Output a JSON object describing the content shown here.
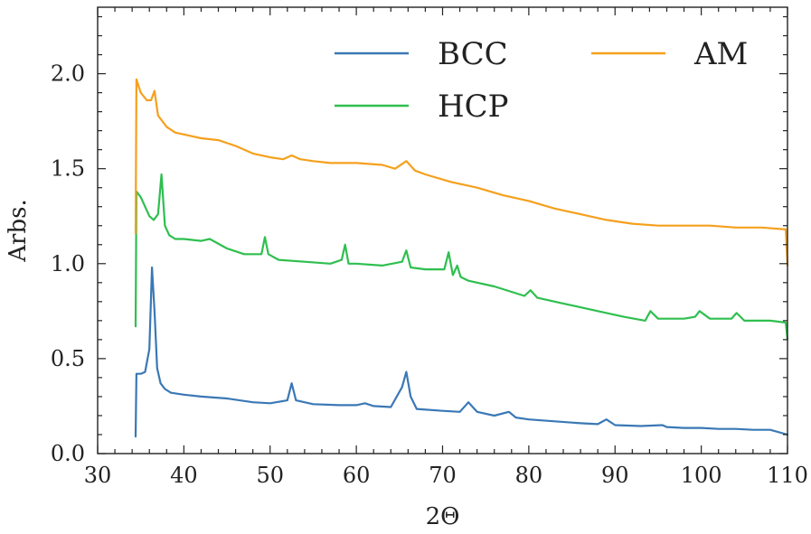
{
  "chart_data": {
    "type": "line",
    "title": "",
    "xlabel": "2Θ",
    "ylabel": "Arbs.",
    "xlim": [
      30,
      110
    ],
    "ylim": [
      0.0,
      2.35
    ],
    "xticks": [
      30,
      40,
      50,
      60,
      70,
      80,
      90,
      100,
      110
    ],
    "xtick_labels": [
      "30",
      "40",
      "50",
      "60",
      "70",
      "80",
      "90",
      "100",
      "110"
    ],
    "yticks": [
      0.0,
      0.5,
      1.0,
      1.5,
      2.0
    ],
    "ytick_labels": [
      "0.0",
      "0.5",
      "1.0",
      "1.5",
      "2.0"
    ],
    "grid": false,
    "legend_position": "top-right",
    "legend_columns": 2,
    "series": [
      {
        "name": "BCC",
        "color": "#3a78b5",
        "x": [
          34.4,
          34.5,
          35.0,
          35.5,
          36.0,
          36.3,
          36.6,
          36.9,
          37.3,
          37.8,
          38.5,
          40,
          42,
          45,
          48,
          50,
          52.0,
          52.5,
          53.0,
          55,
          58,
          60,
          61.0,
          62,
          64,
          65.3,
          65.8,
          66.3,
          67,
          70,
          72,
          73.0,
          74,
          76,
          77.7,
          78.5,
          80,
          83,
          86,
          88,
          89.0,
          90,
          93,
          95.5,
          96,
          98,
          100,
          102,
          104,
          106,
          108,
          110
        ],
        "values": [
          0.09,
          0.42,
          0.42,
          0.43,
          0.55,
          0.98,
          0.75,
          0.45,
          0.37,
          0.34,
          0.32,
          0.31,
          0.3,
          0.29,
          0.27,
          0.265,
          0.28,
          0.37,
          0.28,
          0.26,
          0.255,
          0.255,
          0.265,
          0.25,
          0.245,
          0.35,
          0.43,
          0.3,
          0.235,
          0.225,
          0.22,
          0.27,
          0.22,
          0.2,
          0.22,
          0.19,
          0.18,
          0.17,
          0.16,
          0.155,
          0.18,
          0.15,
          0.145,
          0.15,
          0.14,
          0.135,
          0.135,
          0.13,
          0.13,
          0.125,
          0.125,
          0.1
        ]
      },
      {
        "name": "HCP",
        "color": "#2fbf4f",
        "x": [
          34.4,
          34.5,
          35.0,
          36.0,
          36.5,
          37.0,
          37.4,
          37.8,
          38.3,
          39,
          40,
          42,
          43,
          45,
          47,
          49.0,
          49.4,
          49.8,
          51,
          54,
          57,
          58.3,
          58.7,
          59.1,
          60,
          63,
          65.3,
          65.8,
          66.3,
          68,
          70.2,
          70.7,
          71.2,
          71.7,
          72.1,
          73,
          76,
          79.5,
          80.2,
          81,
          84,
          88,
          91,
          93.5,
          94.1,
          95,
          98,
          99.3,
          99.8,
          101,
          103.5,
          104.1,
          105,
          108,
          109.8,
          110
        ],
        "values": [
          0.67,
          1.38,
          1.35,
          1.25,
          1.23,
          1.26,
          1.47,
          1.2,
          1.15,
          1.13,
          1.13,
          1.12,
          1.13,
          1.08,
          1.05,
          1.05,
          1.14,
          1.05,
          1.02,
          1.01,
          1.0,
          1.02,
          1.1,
          1.0,
          1.0,
          0.99,
          1.01,
          1.07,
          0.98,
          0.97,
          0.97,
          1.06,
          0.94,
          0.99,
          0.93,
          0.91,
          0.88,
          0.83,
          0.86,
          0.82,
          0.79,
          0.75,
          0.72,
          0.7,
          0.75,
          0.71,
          0.71,
          0.72,
          0.75,
          0.71,
          0.71,
          0.74,
          0.7,
          0.7,
          0.69,
          0.6
        ]
      },
      {
        "name": "AM",
        "color": "#f5a01d",
        "x": [
          34.4,
          34.5,
          35.0,
          35.7,
          36.2,
          36.6,
          37.0,
          38,
          39,
          40,
          42,
          44,
          46,
          48,
          50,
          51.5,
          52.5,
          53.5,
          55,
          57,
          60,
          63,
          64.5,
          65.8,
          66.8,
          68,
          71,
          74,
          77,
          80,
          83,
          86,
          89,
          92,
          95,
          98,
          101,
          104,
          107,
          109.8,
          110
        ],
        "values": [
          1.16,
          1.97,
          1.9,
          1.86,
          1.86,
          1.91,
          1.78,
          1.72,
          1.69,
          1.68,
          1.66,
          1.65,
          1.62,
          1.58,
          1.56,
          1.55,
          1.57,
          1.55,
          1.54,
          1.53,
          1.53,
          1.52,
          1.5,
          1.54,
          1.49,
          1.47,
          1.43,
          1.4,
          1.36,
          1.33,
          1.29,
          1.26,
          1.23,
          1.21,
          1.2,
          1.2,
          1.2,
          1.19,
          1.19,
          1.18,
          0.99
        ]
      }
    ]
  }
}
